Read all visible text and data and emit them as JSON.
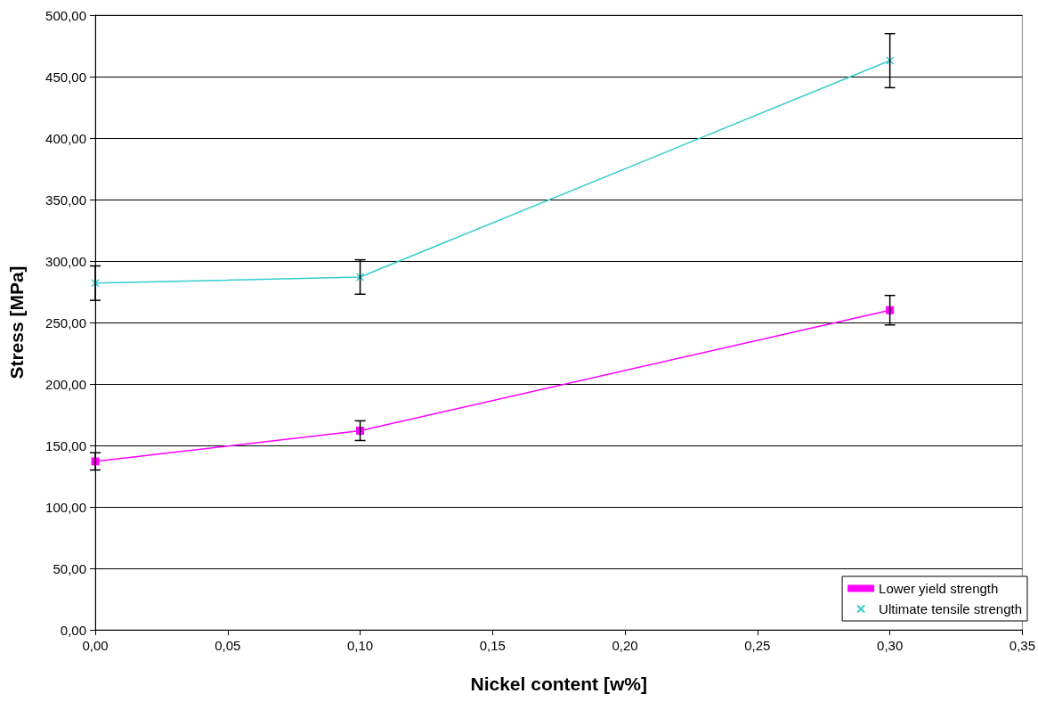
{
  "chart_data": {
    "type": "line",
    "xlabel": "Nickel content [w%]",
    "ylabel": "Stress [MPa]",
    "x": [
      0,
      0.1,
      0.3
    ],
    "series": [
      {
        "name": "Lower yield strength",
        "color": "#ff00ff",
        "marker": "square",
        "values": [
          137,
          162,
          260
        ],
        "errors": [
          7,
          8,
          12
        ]
      },
      {
        "name": "Ultimate tensile strength",
        "color": "#33cccc",
        "marker": "cross",
        "values": [
          282,
          287,
          463
        ],
        "errors": [
          14,
          14,
          22
        ]
      }
    ],
    "xlim": [
      0,
      0.35
    ],
    "xticks": [
      {
        "value": 0,
        "label": "0,00"
      },
      {
        "value": 0.05,
        "label": "0,05"
      },
      {
        "value": 0.1,
        "label": "0,10"
      },
      {
        "value": 0.15,
        "label": "0,15"
      },
      {
        "value": 0.2,
        "label": "0,20"
      },
      {
        "value": 0.25,
        "label": "0,25"
      },
      {
        "value": 0.3,
        "label": "0,30"
      },
      {
        "value": 0.35,
        "label": "0,35"
      }
    ],
    "ylim": [
      0,
      500
    ],
    "yticks": [
      {
        "value": 0,
        "label": "0,00"
      },
      {
        "value": 50,
        "label": "50,00"
      },
      {
        "value": 100,
        "label": "100,00"
      },
      {
        "value": 150,
        "label": "150,00"
      },
      {
        "value": 200,
        "label": "200,00"
      },
      {
        "value": 250,
        "label": "250,00"
      },
      {
        "value": 300,
        "label": "300,00"
      },
      {
        "value": 350,
        "label": "350,00"
      },
      {
        "value": 400,
        "label": "400,00"
      },
      {
        "value": 450,
        "label": "450,00"
      },
      {
        "value": 500,
        "label": "500,00"
      }
    ],
    "grid": "y",
    "legend": "bottom right",
    "line_style": "solid"
  }
}
